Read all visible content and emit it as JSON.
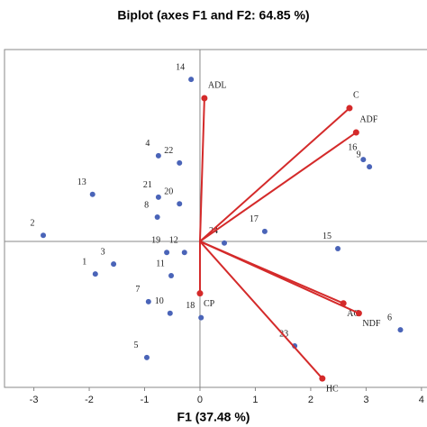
{
  "chart_data": {
    "type": "biplot",
    "title": "Biplot (axes F1 and F2: 64.85 %)",
    "x_label": "F1 (37.48 %)",
    "xlim": [
      -3.53,
      4.1
    ],
    "xticks": [
      -3,
      -2,
      -1,
      0,
      1,
      2,
      3,
      4
    ],
    "ylim": [
      -2.64,
      3.47
    ],
    "observations": {
      "color": "#4a64b8",
      "labels": [
        "14",
        "4",
        "22",
        "13",
        "21",
        "20",
        "8",
        "2",
        "17",
        "16",
        "9",
        "24",
        "15",
        "19",
        "12",
        "3",
        "1",
        "11",
        "7",
        "10",
        "18",
        "23",
        "6",
        "5"
      ],
      "x": [
        -0.16,
        -0.75,
        -0.37,
        -1.94,
        -0.75,
        -0.37,
        -0.77,
        -2.83,
        1.17,
        2.95,
        3.06,
        0.44,
        2.49,
        -0.6,
        -0.28,
        -1.56,
        -1.89,
        -0.52,
        -0.93,
        -0.54,
        0.02,
        1.71,
        3.62,
        -0.96
      ],
      "y": [
        2.93,
        1.55,
        1.42,
        0.85,
        0.8,
        0.68,
        0.44,
        0.11,
        0.18,
        1.48,
        1.35,
        -0.03,
        -0.13,
        -0.2,
        -0.2,
        -0.41,
        -0.59,
        -0.62,
        -1.09,
        -1.3,
        -1.38,
        -1.89,
        -1.6,
        -2.1
      ]
    },
    "variables": {
      "color": "#d42a2a",
      "labels": [
        "ADL",
        "C",
        "ADF",
        "CP",
        "AC",
        "NDF",
        "HC"
      ],
      "x": [
        0.08,
        2.7,
        2.82,
        0,
        2.59,
        2.87,
        2.21
      ],
      "y": [
        2.59,
        2.41,
        1.97,
        -0.94,
        -1.12,
        -1.3,
        -2.48
      ]
    }
  }
}
